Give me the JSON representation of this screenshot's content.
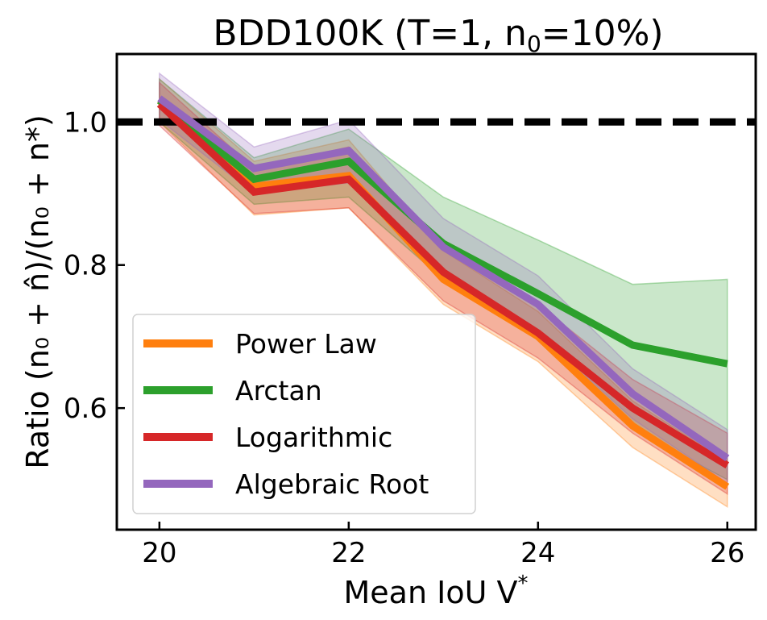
{
  "chart_data": {
    "type": "line",
    "title": "BDD100K (T=1, n",
    "title_sub": "0",
    "title_rest": "=10%)",
    "xlabel": "Mean IoU V",
    "xlabel_sup": "*",
    "ylabel": "Ratio (n₀ + n̂)/(n₀ + n*)",
    "xlim": [
      19.55,
      26.3
    ],
    "ylim": [
      0.43,
      1.095
    ],
    "xticks": [
      20,
      22,
      24,
      26
    ],
    "xtick_labels": [
      "20",
      "22",
      "24",
      "26"
    ],
    "yticks": [
      0.6,
      0.8,
      1.0
    ],
    "ytick_labels": [
      "0.6",
      "0.8",
      "1.0"
    ],
    "reference_line": {
      "y": 1.0,
      "style": "dashed",
      "color": "#000000"
    },
    "x": [
      20,
      21,
      22,
      23,
      24,
      25,
      26
    ],
    "series": [
      {
        "name": "Power Law",
        "color": "#ff7f0e",
        "values": [
          1.03,
          0.91,
          0.925,
          0.78,
          0.7,
          0.575,
          0.49
        ],
        "lower": [
          1.0,
          0.87,
          0.88,
          0.745,
          0.665,
          0.545,
          0.462
        ],
        "upper": [
          1.06,
          0.945,
          0.975,
          0.82,
          0.735,
          0.61,
          0.525
        ]
      },
      {
        "name": "Arctan",
        "color": "#2ca02c",
        "values": [
          1.03,
          0.92,
          0.945,
          0.83,
          0.76,
          0.688,
          0.662
        ],
        "lower": [
          1.0,
          0.885,
          0.895,
          0.78,
          0.7,
          0.57,
          0.5
        ],
        "upper": [
          1.06,
          0.95,
          0.99,
          0.895,
          0.835,
          0.773,
          0.78
        ]
      },
      {
        "name": "Logarithmic",
        "color": "#d62728",
        "values": [
          1.025,
          0.902,
          0.92,
          0.79,
          0.705,
          0.6,
          0.52
        ],
        "lower": [
          0.995,
          0.872,
          0.88,
          0.75,
          0.67,
          0.565,
          0.48
        ],
        "upper": [
          1.055,
          0.935,
          0.965,
          0.83,
          0.745,
          0.64,
          0.565
        ]
      },
      {
        "name": "Algebraic Root",
        "color": "#9467bd",
        "values": [
          1.033,
          0.935,
          0.96,
          0.825,
          0.745,
          0.62,
          0.53
        ],
        "lower": [
          1.003,
          0.9,
          0.915,
          0.785,
          0.705,
          0.585,
          0.495
        ],
        "upper": [
          1.068,
          0.965,
          1.003,
          0.865,
          0.785,
          0.655,
          0.57
        ]
      }
    ],
    "legend": {
      "placement": "lower-left",
      "entries": [
        "Power Law",
        "Arctan",
        "Logarithmic",
        "Algebraic Root"
      ]
    }
  }
}
